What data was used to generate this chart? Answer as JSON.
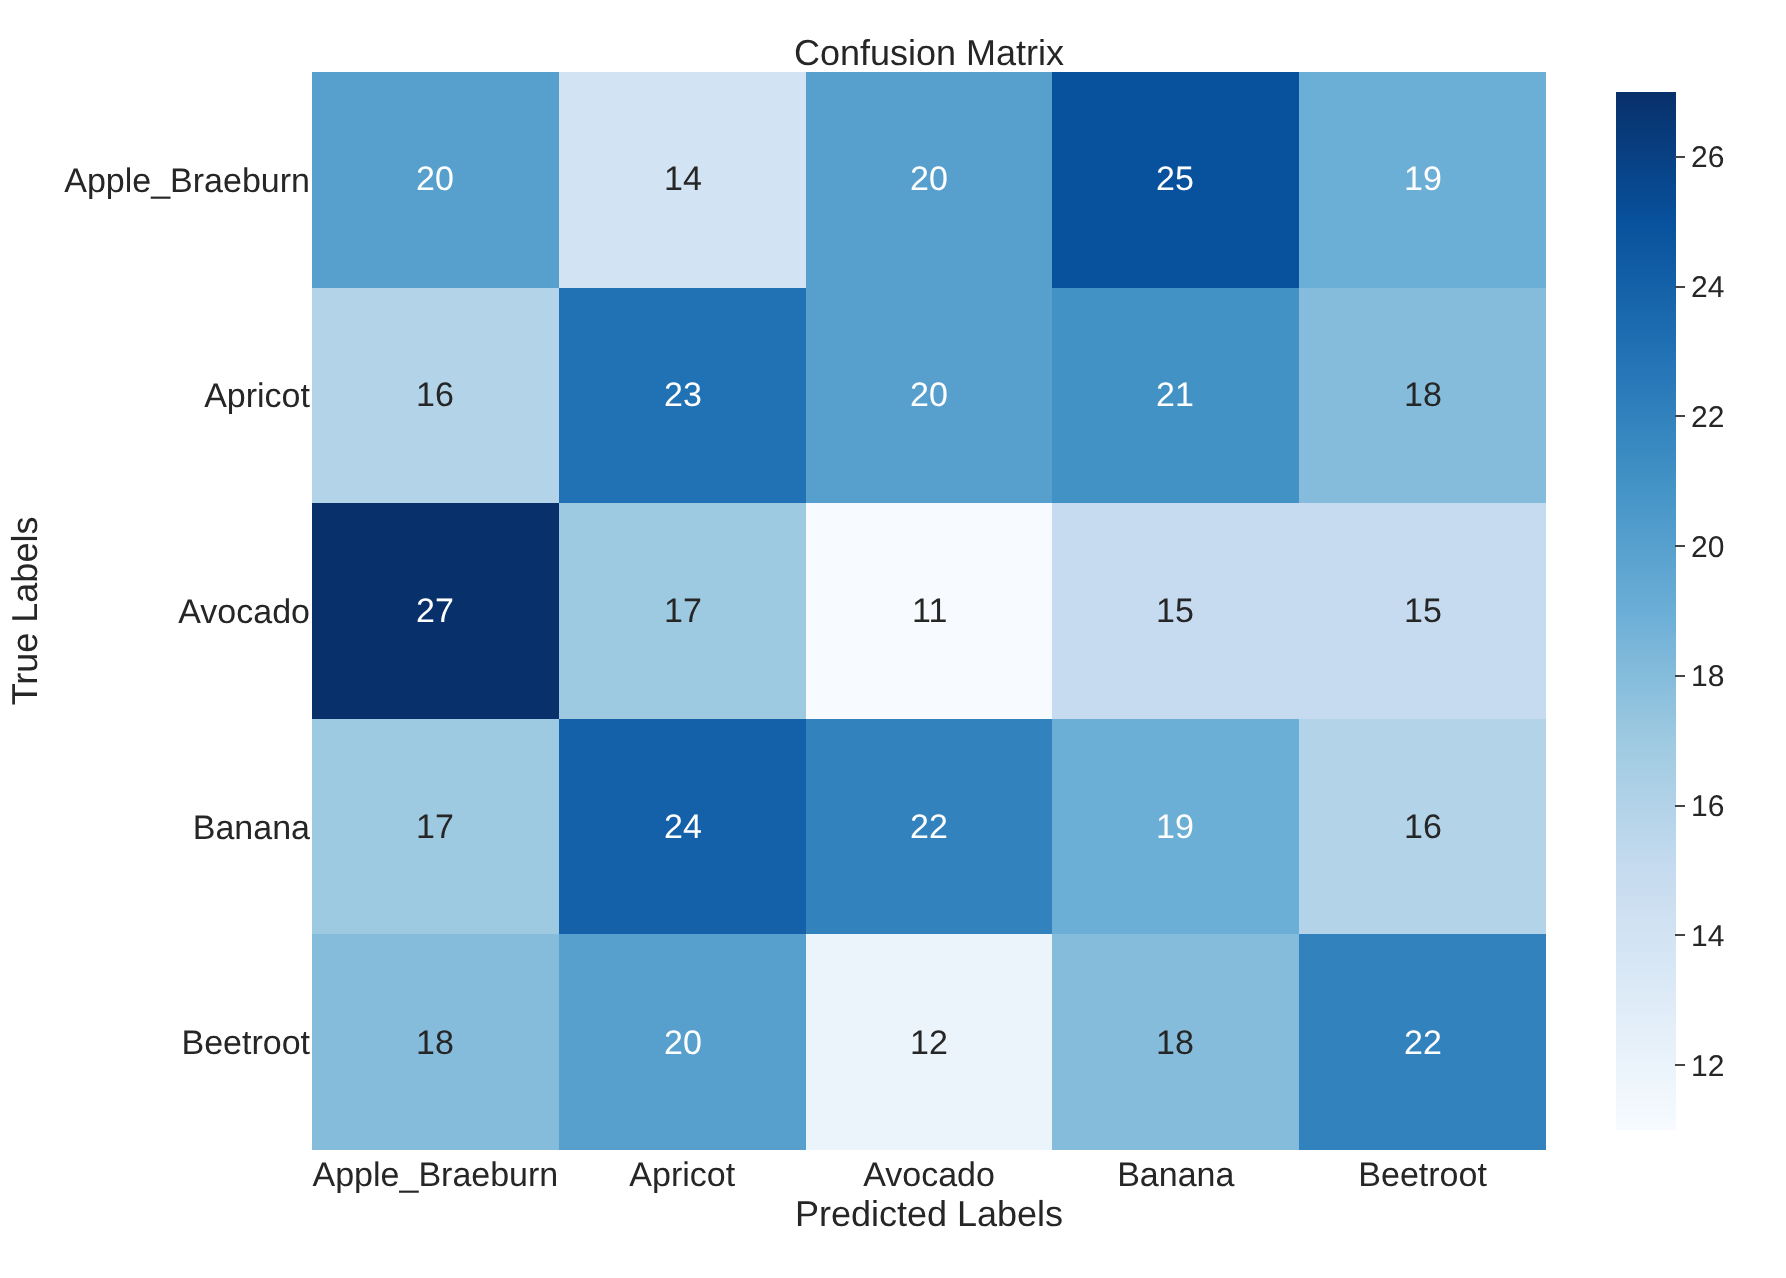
{
  "chart_data": {
    "type": "heatmap",
    "title": "Confusion Matrix",
    "xlabel": "Predicted Labels",
    "ylabel": "True Labels",
    "categories": [
      "Apple_Braeburn",
      "Apricot",
      "Avocado",
      "Banana",
      "Beetroot"
    ],
    "y_categories": [
      "Apple_Braeburn",
      "Apricot",
      "Avocado",
      "Banana",
      "Beetroot"
    ],
    "cells": [
      [
        20,
        14,
        20,
        25,
        19
      ],
      [
        16,
        23,
        20,
        21,
        18
      ],
      [
        27,
        17,
        11,
        15,
        15
      ],
      [
        17,
        24,
        22,
        19,
        16
      ],
      [
        18,
        20,
        12,
        18,
        22
      ]
    ],
    "clim": [
      11,
      27
    ],
    "cticks": [
      12,
      14,
      16,
      18,
      20,
      22,
      24,
      26
    ],
    "data_labels": true
  }
}
